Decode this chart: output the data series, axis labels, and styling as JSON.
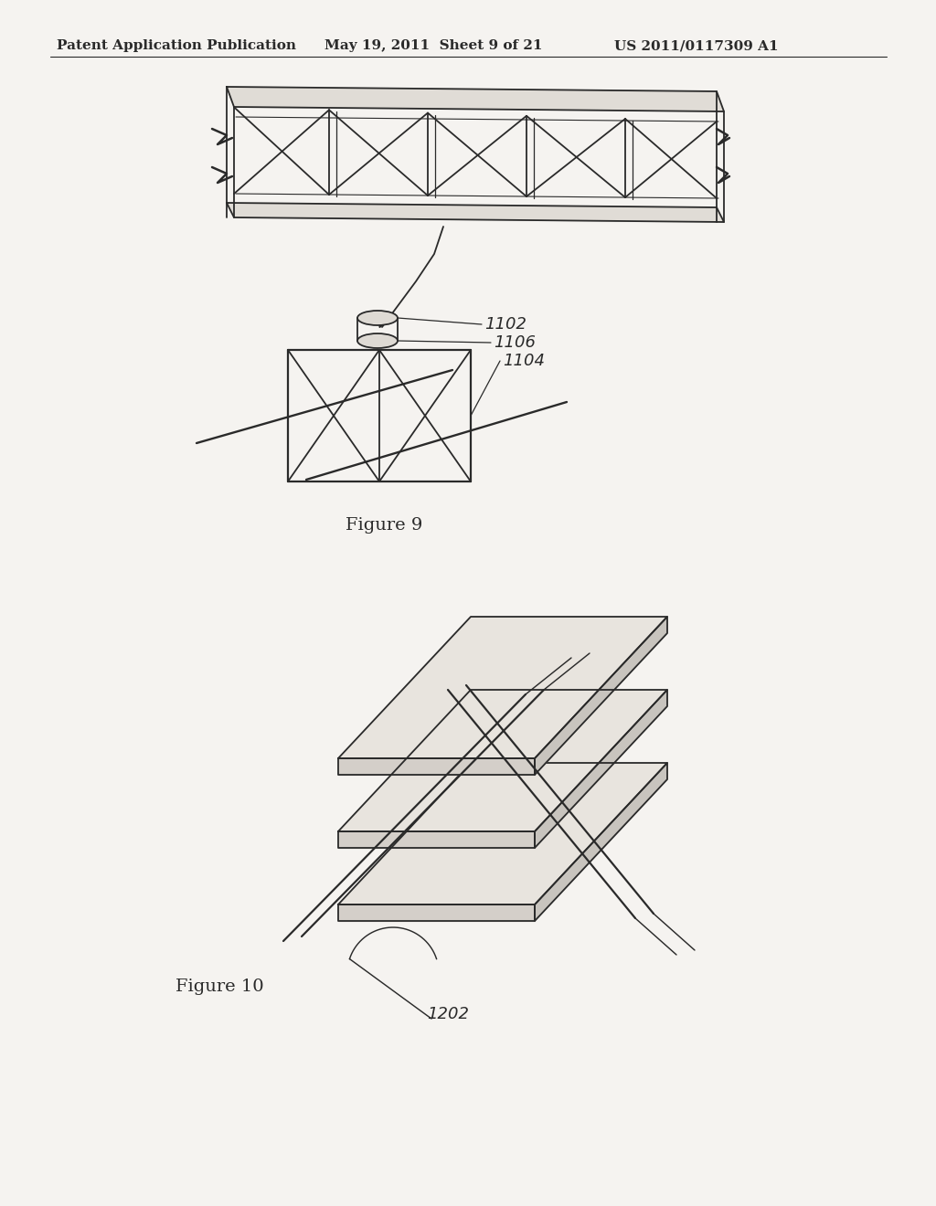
{
  "bg_color": "#f5f3f0",
  "header_left": "Patent Application Publication",
  "header_mid": "May 19, 2011  Sheet 9 of 21",
  "header_right": "US 2011/0117309 A1",
  "header_fontsize": 11,
  "figure9_caption": "Figure 9",
  "figure10_caption": "Figure 10",
  "label_1102": "1102",
  "label_1106": "1106",
  "label_1104": "1104",
  "label_1202": "1202",
  "line_color": "#2a2a2a",
  "line_width": 1.3
}
